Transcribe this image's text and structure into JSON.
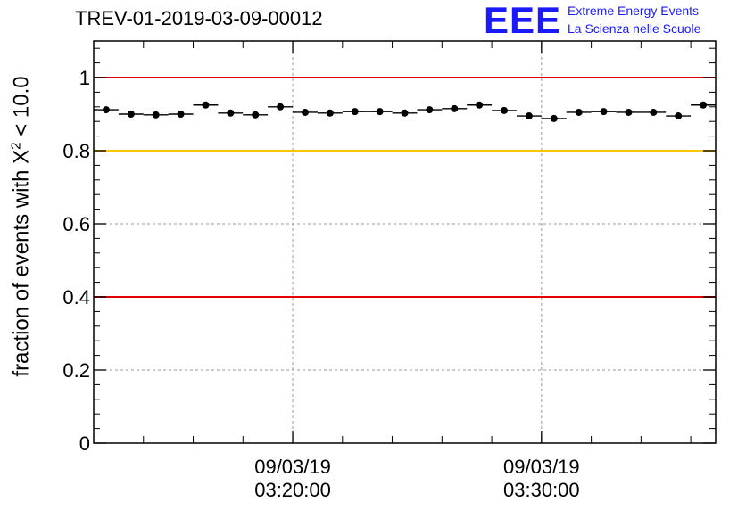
{
  "title": "TREV-01-2019-03-09-00012",
  "logo": {
    "mark": "EEE",
    "line1": "Extreme Energy Events",
    "line2": "La Scienza nelle Scuole"
  },
  "colors": {
    "accent": "#1a1aff",
    "threshold_red": "#e00000",
    "threshold_yellow": "#ffc800"
  },
  "chart_data": {
    "type": "scatter",
    "ylabel": {
      "prefix": "fraction of events with ",
      "symbol": "X",
      "exponent": "2",
      "suffix": " < 10.0"
    },
    "xlabel": "",
    "ylim": [
      0,
      1.1
    ],
    "yticks": [
      0,
      0.2,
      0.4,
      0.6,
      0.8,
      1
    ],
    "ytick_labels": [
      "0",
      "0.2",
      "0.4",
      "0.6",
      "0.8",
      "1"
    ],
    "xlim_minutes": [
      0,
      25
    ],
    "xticks": [
      {
        "minute": 8,
        "date": "09/03/19",
        "time": "03:20:00"
      },
      {
        "minute": 18,
        "date": "09/03/19",
        "time": "03:30:00"
      }
    ],
    "reference_lines": [
      {
        "y": 1.0,
        "color": "#e00000"
      },
      {
        "y": 0.8,
        "color": "#ffc800"
      },
      {
        "y": 0.4,
        "color": "#e00000"
      }
    ],
    "grid": true,
    "series": [
      {
        "values": [
          0.912,
          0.9,
          0.898,
          0.9,
          0.925,
          0.903,
          0.898,
          0.92,
          0.905,
          0.903,
          0.907,
          0.907,
          0.903,
          0.912,
          0.915,
          0.925,
          0.91,
          0.895,
          0.888,
          0.905,
          0.907,
          0.905,
          0.905,
          0.895,
          0.925
        ]
      }
    ]
  }
}
